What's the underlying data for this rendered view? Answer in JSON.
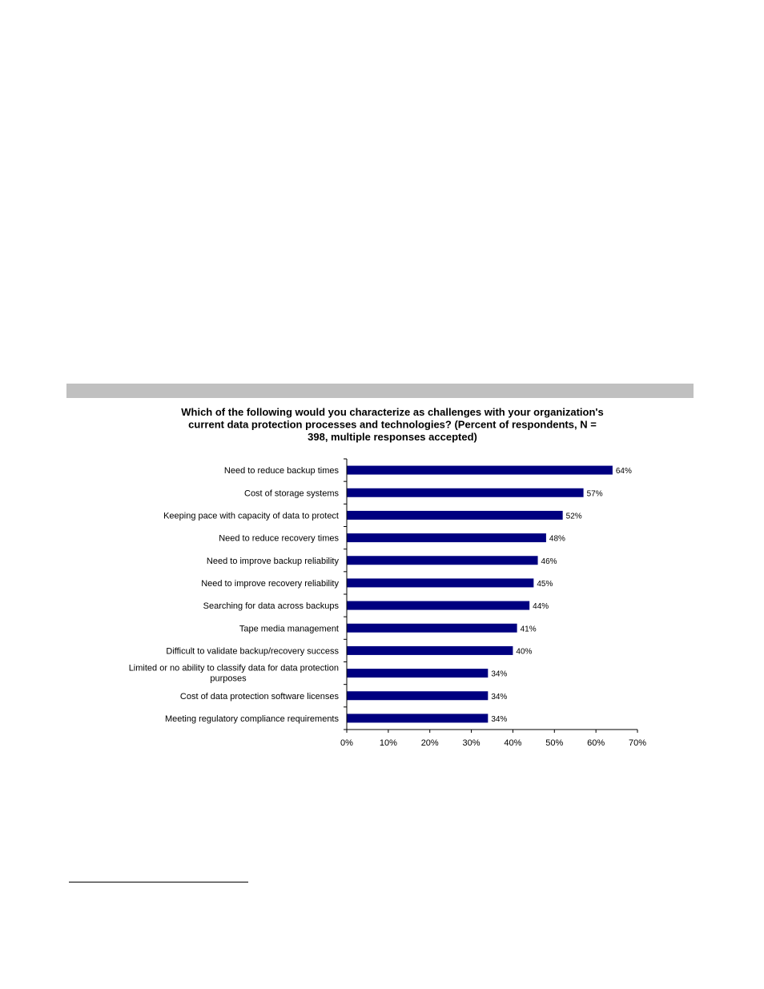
{
  "chart_data": {
    "type": "bar",
    "orientation": "horizontal",
    "title": "Which of the following would you characterize as challenges with your organization's current data protection processes and technologies? (Percent of respondents, N = 398, multiple responses accepted)",
    "title_lines": [
      "Which of the following would you characterize as challenges with your organization's",
      "current data protection processes and technologies? (Percent of respondents, N =",
      "398, multiple responses accepted)"
    ],
    "categories": [
      [
        "Need to reduce backup times"
      ],
      [
        "Cost of storage systems"
      ],
      [
        "Keeping pace with capacity of data to protect"
      ],
      [
        "Need to reduce recovery times"
      ],
      [
        "Need to improve backup reliability"
      ],
      [
        "Need to improve recovery reliability"
      ],
      [
        "Searching for data across backups"
      ],
      [
        "Tape media management"
      ],
      [
        "Difficult to validate backup/recovery success"
      ],
      [
        "Limited or no ability to classify data for data protection",
        "purposes"
      ],
      [
        "Cost of data protection software licenses"
      ],
      [
        "Meeting regulatory compliance requirements"
      ]
    ],
    "values": [
      64,
      57,
      52,
      48,
      46,
      45,
      44,
      41,
      40,
      34,
      34,
      34
    ],
    "data_labels": [
      "64%",
      "57%",
      "52%",
      "48%",
      "46%",
      "45%",
      "44%",
      "41%",
      "40%",
      "34%",
      "34%",
      "34%"
    ],
    "xlim": [
      0,
      70
    ],
    "xticks": [
      0,
      10,
      20,
      30,
      40,
      50,
      60,
      70
    ],
    "xtick_labels": [
      "0%",
      "10%",
      "20%",
      "30%",
      "40%",
      "50%",
      "60%",
      "70%"
    ],
    "bar_color": "#000080",
    "grid": false,
    "legend": "none"
  }
}
